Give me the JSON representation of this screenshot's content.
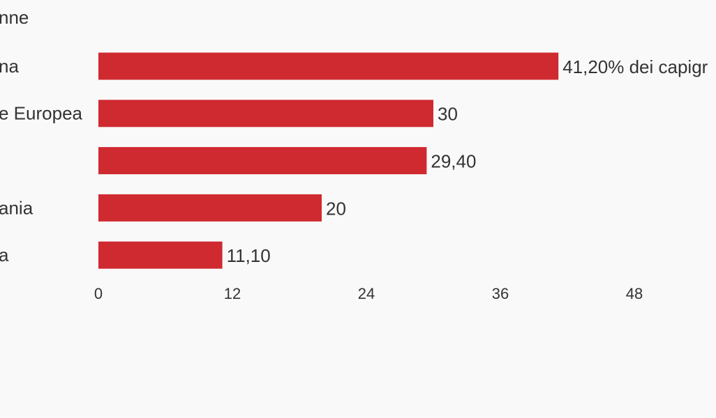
{
  "chart_data": {
    "type": "bar",
    "orientation": "horizontal",
    "title": "nne",
    "categories": [
      "na",
      "e Europea",
      null,
      "ania",
      "a"
    ],
    "values": [
      41.2,
      30,
      29.4,
      20,
      11.1
    ],
    "value_labels": [
      "41,20% dei capigr",
      "30",
      "29,40",
      "20",
      "11,10"
    ],
    "color": "#cf2a30",
    "xlim": [
      0,
      48
    ],
    "xticks": [
      0,
      12,
      24,
      36,
      48
    ],
    "grid": false
  }
}
